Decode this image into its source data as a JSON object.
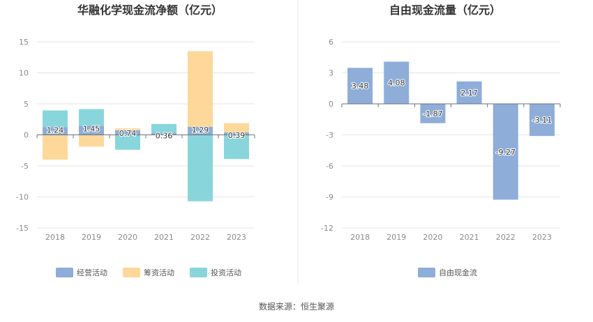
{
  "source": "数据来源：恒生聚源",
  "colors": {
    "operating": "#8eadd9",
    "financing": "#fdd89a",
    "investing": "#88d6dc",
    "free_cash_flow": "#8eadd9"
  },
  "chart_data": [
    {
      "type": "bar",
      "stacked": true,
      "title": "华融化学现金流净额（亿元）",
      "categories": [
        "2018",
        "2019",
        "2020",
        "2021",
        "2022",
        "2023"
      ],
      "ylim": [
        -15,
        15
      ],
      "yticks": [
        -15,
        -10,
        -5,
        0,
        5,
        10,
        15
      ],
      "grid": true,
      "legend": "bottom",
      "series": [
        {
          "name": "经营活动",
          "values": [
            1.24,
            1.45,
            0.74,
            0.36,
            1.29,
            0.39
          ],
          "show_labels": true
        },
        {
          "name": "筹资活动",
          "values": [
            -4.0,
            -1.9,
            0.3,
            0.0,
            12.2,
            1.5
          ],
          "show_labels": false
        },
        {
          "name": "投资活动",
          "values": [
            2.7,
            2.7,
            -2.4,
            1.4,
            -10.7,
            -3.9
          ],
          "show_labels": false
        }
      ]
    },
    {
      "type": "bar",
      "title": "自由现金流量（亿元）",
      "categories": [
        "2018",
        "2019",
        "2020",
        "2021",
        "2022",
        "2023"
      ],
      "ylim": [
        -12,
        6
      ],
      "yticks": [
        -12,
        -9,
        -6,
        -3,
        0,
        3,
        6
      ],
      "grid": true,
      "legend": "bottom",
      "series": [
        {
          "name": "自由现金流",
          "values": [
            3.48,
            4.08,
            -1.87,
            2.17,
            -9.27,
            -3.11
          ],
          "show_labels": true
        }
      ]
    }
  ]
}
